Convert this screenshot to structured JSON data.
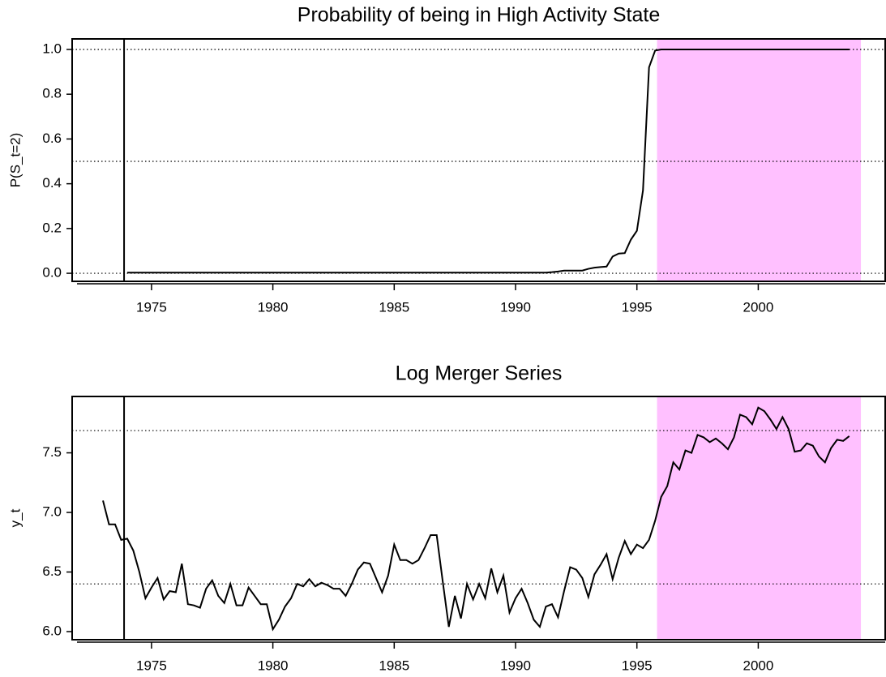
{
  "chart_data": [
    {
      "type": "line",
      "title": "Probability of being in High Activity State",
      "ylabel": "P(S_t=2)",
      "color": "#000000",
      "shade": [
        1995.83,
        2004.23
      ],
      "shade_color": "#ffc0ff",
      "vline": 1973.87,
      "hlines": [
        0,
        0.5,
        1.0
      ],
      "xlim": [
        1971.73,
        2005.23
      ],
      "xticks": [
        1975,
        1980,
        1985,
        1990,
        1995,
        2000
      ],
      "ylim": [
        -0.036,
        1.047
      ],
      "yticks": [
        {
          "value": 0,
          "label": "0.0"
        },
        0.2,
        0.4,
        0.6,
        0.8,
        {
          "value": 1,
          "label": "1.0"
        }
      ],
      "x": [
        1974.0,
        1974.25,
        1974.5,
        1974.75,
        1975.0,
        1975.25,
        1975.5,
        1975.75,
        1976.0,
        1976.25,
        1976.5,
        1976.75,
        1977.0,
        1977.25,
        1977.5,
        1977.75,
        1978.0,
        1978.25,
        1978.5,
        1978.75,
        1979.0,
        1979.25,
        1979.5,
        1979.75,
        1980.0,
        1980.25,
        1980.5,
        1980.75,
        1981.0,
        1981.25,
        1981.5,
        1981.75,
        1982.0,
        1982.25,
        1982.5,
        1982.75,
        1983.0,
        1983.25,
        1983.5,
        1983.75,
        1984.0,
        1984.25,
        1984.5,
        1984.75,
        1985.0,
        1985.25,
        1985.5,
        1985.75,
        1986.0,
        1986.25,
        1986.5,
        1986.75,
        1987.0,
        1987.25,
        1987.5,
        1987.75,
        1988.0,
        1988.25,
        1988.5,
        1988.75,
        1989.0,
        1989.25,
        1989.5,
        1989.75,
        1990.0,
        1990.25,
        1990.5,
        1990.75,
        1991.0,
        1991.25,
        1991.5,
        1991.75,
        1992.0,
        1992.25,
        1992.5,
        1992.75,
        1993.0,
        1993.25,
        1993.5,
        1993.75,
        1994.0,
        1994.25,
        1994.5,
        1994.75,
        1995.0,
        1995.25,
        1995.5,
        1995.75,
        1996.0,
        1996.25,
        1996.5,
        1996.75,
        1997.0,
        1997.25,
        1997.5,
        1997.75,
        1998.0,
        1998.25,
        1998.5,
        1998.75,
        1999.0,
        1999.25,
        1999.5,
        1999.75,
        2000.0,
        2000.25,
        2000.5,
        2000.75,
        2001.0,
        2001.25,
        2001.5,
        2001.75,
        2002.0,
        2002.25,
        2002.5,
        2002.75,
        2003.0,
        2003.25,
        2003.5,
        2003.75
      ],
      "values": [
        0.003,
        0.003,
        0.003,
        0.003,
        0.003,
        0.003,
        0.003,
        0.003,
        0.003,
        0.003,
        0.003,
        0.003,
        0.003,
        0.003,
        0.003,
        0.003,
        0.003,
        0.003,
        0.003,
        0.003,
        0.003,
        0.003,
        0.003,
        0.003,
        0.003,
        0.003,
        0.003,
        0.003,
        0.003,
        0.003,
        0.003,
        0.003,
        0.003,
        0.003,
        0.003,
        0.003,
        0.003,
        0.003,
        0.003,
        0.003,
        0.003,
        0.003,
        0.003,
        0.003,
        0.003,
        0.003,
        0.003,
        0.003,
        0.003,
        0.003,
        0.003,
        0.003,
        0.003,
        0.003,
        0.003,
        0.003,
        0.003,
        0.003,
        0.003,
        0.003,
        0.003,
        0.003,
        0.003,
        0.003,
        0.003,
        0.003,
        0.003,
        0.003,
        0.003,
        0.003,
        0.005,
        0.008,
        0.012,
        0.012,
        0.012,
        0.012,
        0.02,
        0.025,
        0.028,
        0.03,
        0.075,
        0.088,
        0.09,
        0.15,
        0.19,
        0.37,
        0.92,
        0.995,
        1.0,
        1.0,
        1.0,
        1.0,
        1.0,
        1.0,
        1.0,
        1.0,
        1.0,
        1.0,
        1.0,
        1.0,
        1.0,
        1.0,
        1.0,
        1.0,
        1.0,
        1.0,
        1.0,
        1.0,
        1.0,
        1.0,
        1.0,
        1.0,
        1.0,
        1.0,
        1.0,
        1.0,
        1.0,
        1.0,
        1.0,
        1.0
      ]
    },
    {
      "type": "line",
      "title": "Log Merger Series",
      "ylabel": "y_t",
      "color": "#000000",
      "shade": [
        1995.83,
        2004.23
      ],
      "shade_color": "#ffc0ff",
      "vline": 1973.87,
      "hlines": [
        6.4,
        7.687
      ],
      "xlim": [
        1971.73,
        2005.23
      ],
      "xticks": [
        1975,
        1980,
        1985,
        1990,
        1995,
        2000
      ],
      "ylim": [
        5.932,
        7.973
      ],
      "yticks": [
        {
          "value": 6,
          "label": "6.0"
        },
        6.5,
        {
          "value": 7,
          "label": "7.0"
        },
        7.5
      ],
      "x": [
        1973.0,
        1973.25,
        1973.5,
        1973.75,
        1974.0,
        1974.25,
        1974.5,
        1974.75,
        1975.0,
        1975.25,
        1975.5,
        1975.75,
        1976.0,
        1976.25,
        1976.5,
        1976.75,
        1977.0,
        1977.25,
        1977.5,
        1977.75,
        1978.0,
        1978.25,
        1978.5,
        1978.75,
        1979.0,
        1979.25,
        1979.5,
        1979.75,
        1980.0,
        1980.25,
        1980.5,
        1980.75,
        1981.0,
        1981.25,
        1981.5,
        1981.75,
        1982.0,
        1982.25,
        1982.5,
        1982.75,
        1983.0,
        1983.25,
        1983.5,
        1983.75,
        1984.0,
        1984.25,
        1984.5,
        1984.75,
        1985.0,
        1985.25,
        1985.5,
        1985.75,
        1986.0,
        1986.25,
        1986.5,
        1986.75,
        1987.0,
        1987.25,
        1987.5,
        1987.75,
        1988.0,
        1988.25,
        1988.5,
        1988.75,
        1989.0,
        1989.25,
        1989.5,
        1989.75,
        1990.0,
        1990.25,
        1990.5,
        1990.75,
        1991.0,
        1991.25,
        1991.5,
        1991.75,
        1992.0,
        1992.25,
        1992.5,
        1992.75,
        1993.0,
        1993.25,
        1993.5,
        1993.75,
        1994.0,
        1994.25,
        1994.5,
        1994.75,
        1995.0,
        1995.25,
        1995.5,
        1995.75,
        1996.0,
        1996.25,
        1996.5,
        1996.75,
        1997.0,
        1997.25,
        1997.5,
        1997.75,
        1998.0,
        1998.25,
        1998.5,
        1998.75,
        1999.0,
        1999.25,
        1999.5,
        1999.75,
        2000.0,
        2000.25,
        2000.5,
        2000.75,
        2001.0,
        2001.25,
        2001.5,
        2001.75,
        2002.0,
        2002.25,
        2002.5,
        2002.75,
        2003.0,
        2003.25,
        2003.5,
        2003.75
      ],
      "values": [
        7.1,
        6.9,
        6.9,
        6.77,
        6.78,
        6.68,
        6.5,
        6.28,
        6.37,
        6.45,
        6.27,
        6.34,
        6.33,
        6.57,
        6.23,
        6.22,
        6.2,
        6.36,
        6.43,
        6.3,
        6.24,
        6.4,
        6.22,
        6.22,
        6.37,
        6.3,
        6.23,
        6.23,
        6.02,
        6.1,
        6.21,
        6.28,
        6.4,
        6.38,
        6.44,
        6.38,
        6.41,
        6.39,
        6.36,
        6.36,
        6.3,
        6.4,
        6.52,
        6.58,
        6.57,
        6.45,
        6.33,
        6.47,
        6.73,
        6.6,
        6.6,
        6.57,
        6.6,
        6.7,
        6.81,
        6.81,
        6.42,
        6.04,
        6.3,
        6.11,
        6.4,
        6.27,
        6.4,
        6.28,
        6.53,
        6.33,
        6.47,
        6.16,
        6.28,
        6.36,
        6.24,
        6.1,
        6.04,
        6.21,
        6.23,
        6.12,
        6.34,
        6.54,
        6.52,
        6.45,
        6.29,
        6.48,
        6.56,
        6.65,
        6.44,
        6.62,
        6.76,
        6.65,
        6.73,
        6.7,
        6.77,
        6.93,
        7.13,
        7.22,
        7.42,
        7.36,
        7.52,
        7.5,
        7.65,
        7.63,
        7.59,
        7.62,
        7.58,
        7.53,
        7.63,
        7.82,
        7.8,
        7.74,
        7.88,
        7.85,
        7.78,
        7.7,
        7.8,
        7.7,
        7.51,
        7.52,
        7.58,
        7.56,
        7.47,
        7.42,
        7.54,
        7.61,
        7.6,
        7.64
      ]
    }
  ]
}
